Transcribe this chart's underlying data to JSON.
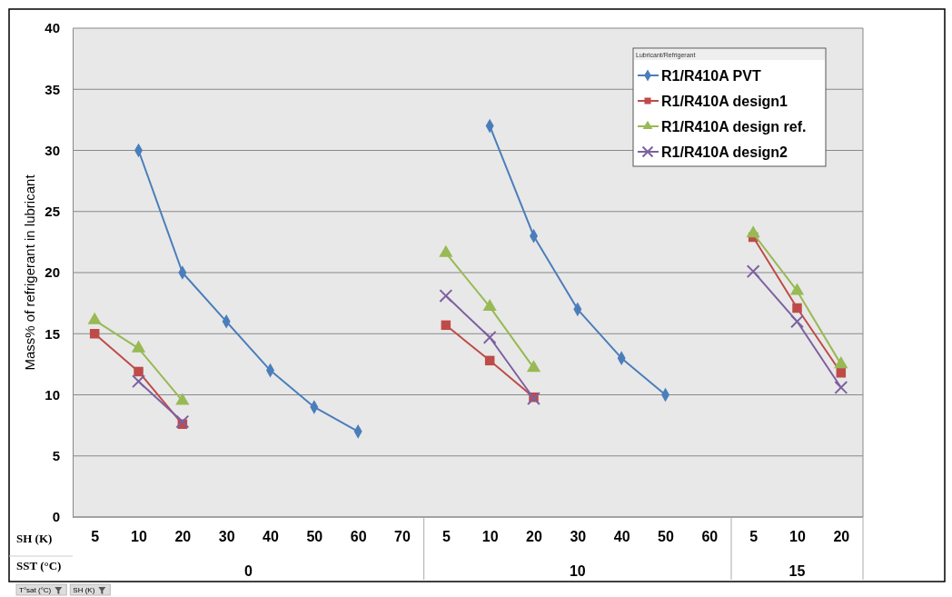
{
  "chart_data": {
    "type": "line",
    "ylabel": "Mass% of refrigerant in lubricant",
    "xlabel": "SH (K)",
    "legend_title": "Lubricant/Refrigerant",
    "legend": "top right",
    "grid": "y",
    "line_style": "solid",
    "categories": [
      "5",
      "10",
      "20",
      "30",
      "40",
      "50",
      "60",
      "70",
      "5",
      "10",
      "20",
      "30",
      "40",
      "50",
      "60",
      "5",
      "10",
      "20"
    ],
    "ylim": [
      0,
      40
    ],
    "yticks": [
      0,
      5,
      10,
      15,
      20,
      25,
      30,
      35,
      40
    ],
    "series": [
      {
        "name": "R1/R410A PVT",
        "color": "#4a7ebb",
        "marker": "diamond",
        "values": [
          null,
          30,
          20,
          16,
          12,
          9,
          7,
          null,
          null,
          32,
          23,
          17,
          13,
          10,
          null,
          null,
          null,
          null
        ]
      },
      {
        "name": "R1/R410A design1",
        "color": "#be4b48",
        "marker": "square",
        "values": [
          15,
          11.9,
          7.6,
          null,
          null,
          null,
          null,
          null,
          15.7,
          12.8,
          9.8,
          null,
          null,
          null,
          null,
          22.9,
          17.1,
          11.8
        ]
      },
      {
        "name": "R1/R410A design ref.",
        "color": "#98b954",
        "marker": "triangle",
        "values": [
          16.1,
          13.8,
          9.5,
          null,
          null,
          null,
          null,
          null,
          21.6,
          17.2,
          12.2,
          null,
          null,
          null,
          null,
          23.2,
          18.5,
          12.5
        ]
      },
      {
        "name": "R1/R410A design2",
        "color": "#7d60a0",
        "marker": "cross",
        "values": [
          null,
          11.1,
          7.8,
          null,
          null,
          null,
          null,
          null,
          18.1,
          14.7,
          9.7,
          null,
          null,
          null,
          null,
          20.1,
          16.0,
          10.6
        ]
      }
    ],
    "annotations": [
      "SST (°C)",
      "0",
      "10",
      "15",
      "T°sat (°C)",
      "SH (K)"
    ]
  }
}
